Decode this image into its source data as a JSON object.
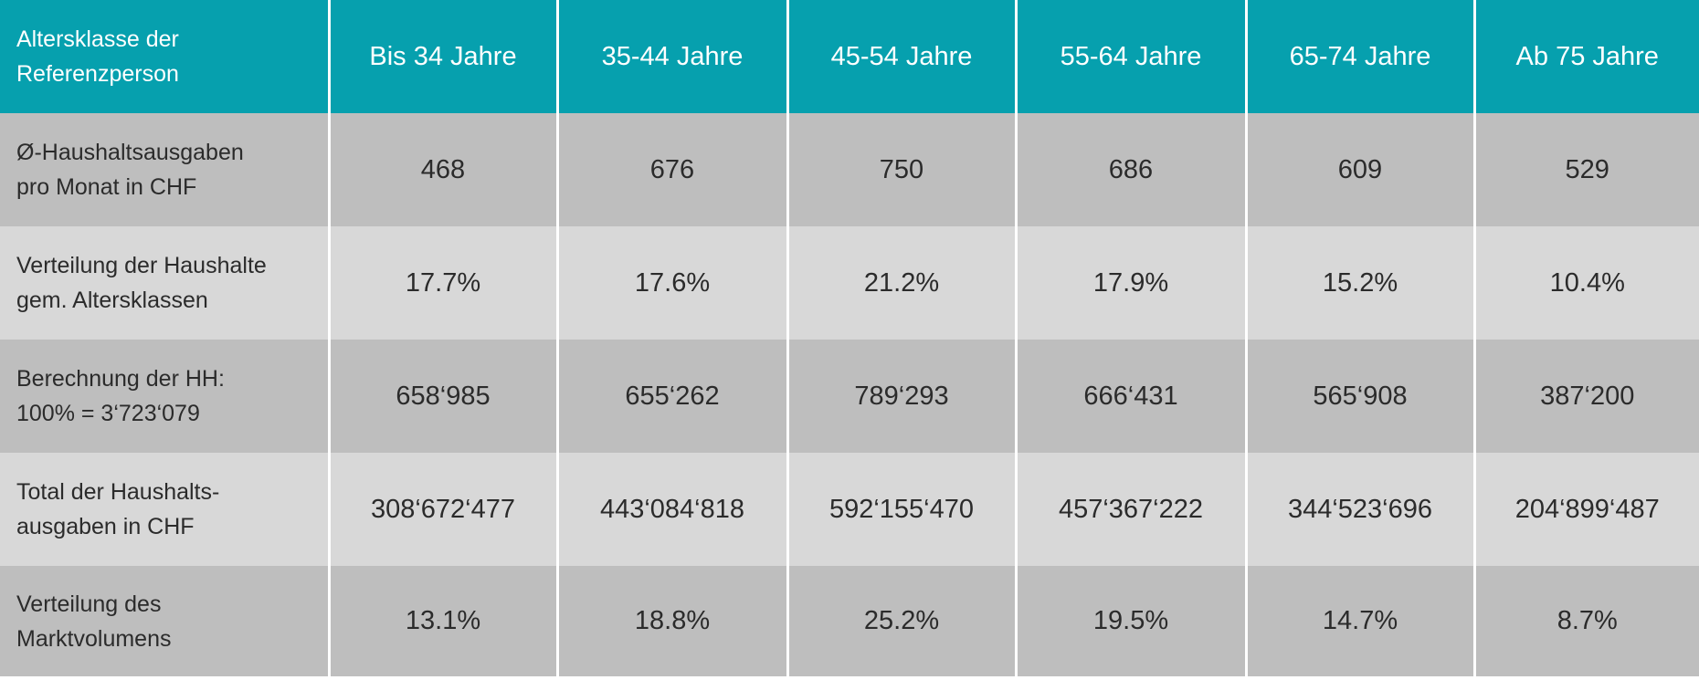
{
  "table": {
    "header": {
      "row_label": [
        "Altersklasse der",
        "Referenzperson"
      ],
      "columns": [
        "Bis 34 Jahre",
        "35-44 Jahre",
        "45-54 Jahre",
        "55-64 Jahre",
        "65-74 Jahre",
        "Ab 75 Jahre"
      ]
    },
    "rows": [
      {
        "label": [
          "Ø-Haushaltsausgaben",
          "pro Monat in CHF"
        ],
        "values": [
          "468",
          "676",
          "750",
          "686",
          "609",
          "529"
        ]
      },
      {
        "label": [
          "Verteilung der Haushalte",
          "gem. Altersklassen"
        ],
        "values": [
          "17.7%",
          "17.6%",
          "21.2%",
          "17.9%",
          "15.2%",
          "10.4%"
        ]
      },
      {
        "label": [
          "Berechnung der HH:",
          "100% = 3‘723‘079"
        ],
        "values": [
          "658‘985",
          "655‘262",
          "789‘293",
          "666‘431",
          "565‘908",
          "387‘200"
        ]
      },
      {
        "label": [
          "Total der Haushalts-",
          "ausgaben in CHF"
        ],
        "values": [
          "308‘672‘477",
          "443‘084‘818",
          "592‘155‘470",
          "457‘367‘222",
          "344‘523‘696",
          "204‘899‘487"
        ]
      },
      {
        "label": [
          "Verteilung des",
          "Marktvolumens"
        ],
        "values": [
          "13.1%",
          "18.8%",
          "25.2%",
          "19.5%",
          "14.7%",
          "8.7%"
        ]
      }
    ]
  },
  "colors": {
    "header_bg": "#06a0ae",
    "row_dark_bg": "#bebebe",
    "row_light_bg": "#d8d8d8",
    "text": "#2b2b2b"
  }
}
